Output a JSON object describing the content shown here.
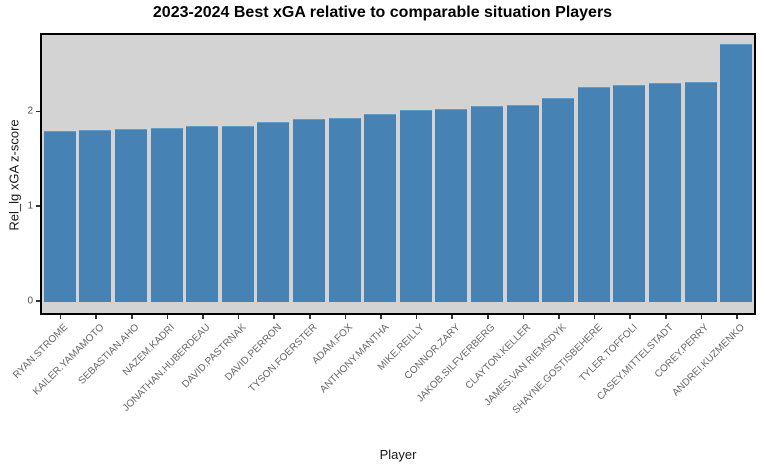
{
  "chart_data": {
    "type": "bar",
    "title": "2023-2024 Best xGA relative to comparable situation Players",
    "xlabel": "Player",
    "ylabel": "Rel_lg xGA z-score",
    "categories": [
      "RYAN.STROME",
      "KAILER.YAMAMOTO",
      "SEBASTIAN.AHO",
      "NAZEM.KADRI",
      "JONATHAN.HUBERDEAU",
      "DAVID.PASTRNAK",
      "DAVID.PERRON",
      "TYSON.FOERSTER",
      "ADAM.FOX",
      "ANTHONY.MANTHA",
      "MIKE.REILLY",
      "CONNOR.ZARY",
      "JAKOB.SILFVERBERG",
      "CLAYTON.KELLER",
      "JAMES.VAN RIEMSDYK",
      "SHAYNE.GOSTISBEHERE",
      "TYLER.TOFFOLI",
      "CASEY.MITTELSTADT",
      "COREY.PERRY",
      "ANDREI.KUZMENKO"
    ],
    "values": [
      1.79,
      1.8,
      1.81,
      1.82,
      1.84,
      1.84,
      1.88,
      1.92,
      1.93,
      1.97,
      2.01,
      2.02,
      2.05,
      2.06,
      2.14,
      2.25,
      2.27,
      2.29,
      2.31,
      2.71
    ],
    "yticks": [
      0,
      1,
      2
    ],
    "ylim": [
      -0.14,
      2.85
    ],
    "grid": false,
    "legend_position": "none",
    "bar_color": "#4682b4",
    "panel_background": "#d3d3d3",
    "panel_border_color": "#000000"
  }
}
